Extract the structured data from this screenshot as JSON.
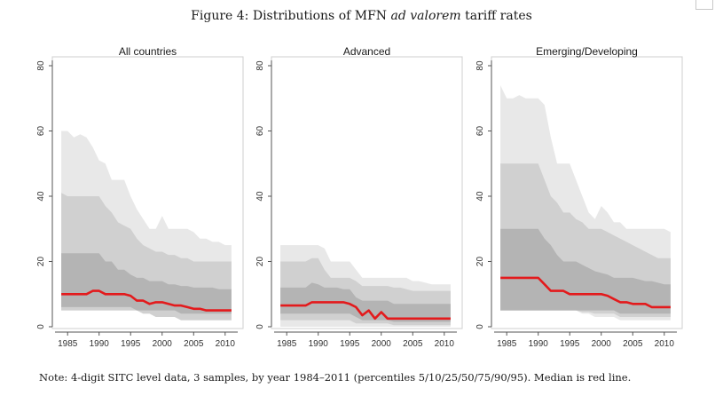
{
  "figure": {
    "title_prefix": "Figure 4: Distributions of MFN ",
    "title_italic": "ad valorem",
    "title_suffix": " tariff rates",
    "note": "Note: 4-digit SITC level data, 3 samples, by year 1984–2011 (percentiles 5/10/25/50/75/90/95). Median is red line."
  },
  "colors": {
    "band_outer": "#e8e8e8",
    "band_middle": "#d0d0d0",
    "band_inner": "#b4b4b4",
    "median": "#e31a1c",
    "axis": "#555555"
  },
  "chart_data": [
    {
      "type": "area",
      "title": "All countries",
      "x": [
        1984,
        1985,
        1986,
        1987,
        1988,
        1989,
        1990,
        1991,
        1992,
        1993,
        1994,
        1995,
        1996,
        1997,
        1998,
        1999,
        2000,
        2001,
        2002,
        2003,
        2004,
        2005,
        2006,
        2007,
        2008,
        2009,
        2010,
        2011
      ],
      "series": [
        {
          "name": "p5",
          "values": [
            5,
            5,
            5,
            5,
            5,
            5,
            5,
            5,
            5,
            5,
            5,
            5,
            5,
            4,
            4,
            3,
            3,
            3,
            3,
            2,
            2,
            2,
            2,
            2,
            2,
            2,
            2,
            2
          ]
        },
        {
          "name": "p10",
          "values": [
            5,
            5,
            5,
            5,
            5,
            5,
            5,
            5,
            5,
            5,
            5,
            5,
            5,
            4,
            4,
            3,
            3,
            3,
            3,
            2,
            2,
            2,
            2,
            2,
            2,
            2,
            2,
            2
          ]
        },
        {
          "name": "p25",
          "values": [
            6,
            6,
            6,
            6,
            6,
            6,
            6,
            6,
            6,
            6,
            6,
            6,
            5,
            5,
            5,
            5,
            5,
            5,
            5,
            4,
            4,
            4,
            4,
            4,
            4,
            4,
            4,
            4
          ]
        },
        {
          "name": "p50",
          "values": [
            10,
            10,
            10,
            10,
            10,
            11,
            11,
            10,
            10,
            10,
            10,
            9.5,
            8,
            8,
            7,
            7.5,
            7.5,
            7,
            6.5,
            6.5,
            6,
            5.5,
            5.5,
            5,
            5,
            5,
            5,
            5
          ]
        },
        {
          "name": "p75",
          "values": [
            22.5,
            22.5,
            22.5,
            22.5,
            22.5,
            22.5,
            22.5,
            20,
            20,
            17.5,
            17.5,
            16,
            15,
            15,
            14,
            14,
            14,
            13,
            13,
            12.5,
            12.5,
            12,
            12,
            12,
            12,
            11.5,
            11.5,
            11.5
          ]
        },
        {
          "name": "p90",
          "values": [
            41,
            40,
            40,
            40,
            40,
            40,
            40,
            37,
            35,
            32,
            31,
            30,
            27,
            25,
            24,
            23,
            23,
            22,
            22,
            21,
            21,
            20,
            20,
            20,
            20,
            20,
            20,
            20
          ]
        },
        {
          "name": "p95",
          "values": [
            60,
            60,
            58,
            59,
            58,
            55,
            51,
            50,
            45,
            45,
            45,
            40,
            36,
            33,
            30,
            30,
            34,
            30,
            30,
            30,
            30,
            29,
            27,
            27,
            26,
            26,
            25,
            25
          ]
        }
      ],
      "xlabel": "",
      "ylabel": "",
      "xlim": [
        1983,
        2012
      ],
      "ylim": [
        0,
        80
      ],
      "xticks": [
        1985,
        1990,
        1995,
        2000,
        2005,
        2010
      ],
      "yticks": [
        0,
        20,
        40,
        60,
        80
      ]
    },
    {
      "type": "area",
      "title": "Advanced",
      "x": [
        1984,
        1985,
        1986,
        1987,
        1988,
        1989,
        1990,
        1991,
        1992,
        1993,
        1994,
        1995,
        1996,
        1997,
        1998,
        1999,
        2000,
        2001,
        2002,
        2003,
        2004,
        2005,
        2006,
        2007,
        2008,
        2009,
        2010,
        2011
      ],
      "series": [
        {
          "name": "p5",
          "values": [
            0,
            0,
            0,
            0,
            0,
            0,
            0,
            0,
            0,
            0,
            0,
            0,
            0,
            0,
            0,
            0,
            0,
            0,
            0,
            0,
            0,
            0,
            0,
            0,
            0,
            0,
            0,
            0
          ]
        },
        {
          "name": "p10",
          "values": [
            2,
            2,
            2,
            2,
            2,
            2,
            2,
            2,
            2,
            2,
            2,
            2,
            1,
            1,
            1,
            1,
            1,
            1,
            0.5,
            0.5,
            0.5,
            0.5,
            0.5,
            0.5,
            0.5,
            0.5,
            0.5,
            0.5
          ]
        },
        {
          "name": "p25",
          "values": [
            4,
            4,
            4,
            4,
            4,
            4,
            4,
            4,
            4,
            4,
            4,
            4,
            3,
            2,
            2,
            2,
            2,
            2,
            1.5,
            1.5,
            1.5,
            1.5,
            1.5,
            1.5,
            1.5,
            1.5,
            1.5,
            1.5
          ]
        },
        {
          "name": "p50",
          "values": [
            6.5,
            6.5,
            6.5,
            6.5,
            6.5,
            7.5,
            7.5,
            7.5,
            7.5,
            7.5,
            7.5,
            7,
            6,
            3.5,
            5,
            2.5,
            4.5,
            2.5,
            2.5,
            2.5,
            2.5,
            2.5,
            2.5,
            2.5,
            2.5,
            2.5,
            2.5,
            2.5
          ]
        },
        {
          "name": "p75",
          "values": [
            12,
            12,
            12,
            12,
            12,
            13.5,
            13,
            12,
            12,
            12,
            11.5,
            11.5,
            9,
            8,
            8,
            8,
            8,
            8,
            7,
            7,
            7,
            7,
            7,
            7,
            7,
            7,
            7,
            7
          ]
        },
        {
          "name": "p90",
          "values": [
            20,
            20,
            20,
            20,
            20,
            21,
            21,
            17.5,
            15,
            15,
            15,
            15,
            14,
            12.5,
            12.5,
            12.5,
            12.5,
            12.5,
            12,
            12,
            11.5,
            11,
            11,
            11,
            11,
            11,
            11,
            11
          ]
        },
        {
          "name": "p95",
          "values": [
            25,
            25,
            25,
            25,
            25,
            25,
            25,
            24,
            20,
            20,
            20,
            20,
            17.5,
            15,
            15,
            15,
            15,
            15,
            15,
            15,
            15,
            14,
            14,
            13.5,
            13,
            13,
            13,
            13
          ]
        }
      ],
      "xlabel": "",
      "ylabel": "",
      "xlim": [
        1983,
        2012
      ],
      "ylim": [
        0,
        80
      ],
      "xticks": [
        1985,
        1990,
        1995,
        2000,
        2005,
        2010
      ],
      "yticks": [
        0,
        20,
        40,
        60,
        80
      ]
    },
    {
      "type": "area",
      "title": "Emerging/Developing",
      "x": [
        1984,
        1985,
        1986,
        1987,
        1988,
        1989,
        1990,
        1991,
        1992,
        1993,
        1994,
        1995,
        1996,
        1997,
        1998,
        1999,
        2000,
        2001,
        2002,
        2003,
        2004,
        2005,
        2006,
        2007,
        2008,
        2009,
        2010,
        2011
      ],
      "series": [
        {
          "name": "p5",
          "values": [
            5,
            5,
            5,
            5,
            5,
            5,
            5,
            5,
            5,
            5,
            5,
            5,
            5,
            4,
            4,
            3,
            3,
            3,
            3,
            2,
            2,
            2,
            2,
            2,
            2,
            2,
            2,
            2
          ]
        },
        {
          "name": "p10",
          "values": [
            5,
            5,
            5,
            5,
            5,
            5,
            5,
            5,
            5,
            5,
            5,
            5,
            5,
            4.5,
            4.5,
            4,
            4,
            4,
            4,
            3,
            3,
            3,
            3,
            3,
            3,
            3,
            3,
            3
          ]
        },
        {
          "name": "p25",
          "values": [
            5,
            5,
            5,
            5,
            5,
            5,
            5,
            5,
            5,
            5,
            5,
            5,
            5,
            5,
            5,
            5,
            5,
            5,
            5,
            4,
            4,
            4,
            4,
            4,
            4,
            4,
            4,
            4
          ]
        },
        {
          "name": "p50",
          "values": [
            15,
            15,
            15,
            15,
            15,
            15,
            15,
            13,
            11,
            11,
            11,
            10,
            10,
            10,
            10,
            10,
            10,
            9.5,
            8.5,
            7.5,
            7.5,
            7,
            7,
            7,
            6,
            6,
            6,
            6
          ]
        },
        {
          "name": "p75",
          "values": [
            30,
            30,
            30,
            30,
            30,
            30,
            30,
            27,
            25,
            22,
            20,
            20,
            20,
            19,
            18,
            17,
            16.5,
            16,
            15,
            15,
            15,
            15,
            14.5,
            14,
            14,
            13.5,
            13,
            13
          ]
        },
        {
          "name": "p90",
          "values": [
            50,
            50,
            50,
            50,
            50,
            50,
            50,
            45,
            40,
            38,
            35,
            35,
            33,
            32,
            30,
            30,
            30,
            29,
            28,
            27,
            26,
            25,
            24,
            23,
            22,
            21,
            21,
            21
          ]
        },
        {
          "name": "p95",
          "values": [
            74,
            70,
            70,
            71,
            70,
            70,
            70,
            68,
            58,
            50,
            50,
            50,
            45,
            40,
            35,
            33,
            37,
            35,
            32,
            32,
            30,
            30,
            30,
            30,
            30,
            30,
            30,
            29
          ]
        }
      ],
      "xlabel": "",
      "ylabel": "",
      "xlim": [
        1983,
        2012
      ],
      "ylim": [
        0,
        80
      ],
      "xticks": [
        1985,
        1990,
        1995,
        2000,
        2005,
        2010
      ],
      "yticks": [
        0,
        20,
        40,
        60,
        80
      ]
    }
  ]
}
